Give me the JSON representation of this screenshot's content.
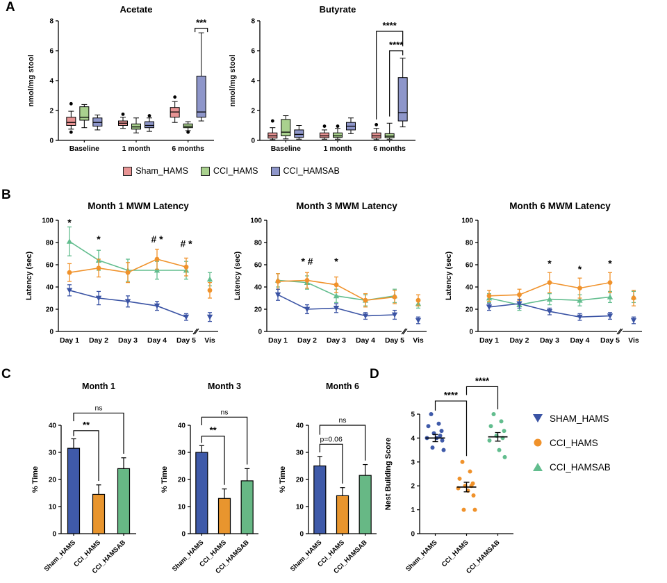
{
  "panel_labels": {
    "a": "A",
    "b": "B",
    "c": "C",
    "d": "D"
  },
  "legend_a": {
    "items": [
      {
        "label": "Sham_HAMS",
        "color": "#e89494"
      },
      {
        "label": "CCI_HAMS",
        "color": "#a9d18e"
      },
      {
        "label": "CCI_HAMSAB",
        "color": "#8e96ca"
      }
    ]
  },
  "legend_d": {
    "items": [
      {
        "label": "SHAM_HAMS",
        "color": "#3a53a4",
        "marker": "triangle-down"
      },
      {
        "label": "CCI_HAMS",
        "color": "#f0922b",
        "marker": "circle"
      },
      {
        "label": "CCI_HAMSAB",
        "color": "#62bd8e",
        "marker": "triangle-up"
      }
    ]
  },
  "chart_data": [
    {
      "id": "acetate",
      "type": "box",
      "title": "Acetate",
      "ylabel": "nmol/mg stool",
      "ylim": [
        0,
        8
      ],
      "yticks": [
        0,
        2,
        4,
        6,
        8
      ],
      "categories": [
        "Baseline",
        "1 month",
        "6 months"
      ],
      "groups": [
        "Sham_HAMS",
        "CCI_HAMS",
        "CCI_HAMSAB"
      ],
      "colors": [
        "#e89494",
        "#a9d18e",
        "#8e96ca"
      ],
      "boxes": [
        [
          {
            "lo": 0.75,
            "q1": 1.0,
            "med": 1.2,
            "q3": 1.55,
            "hi": 1.95,
            "out": [
              0.55,
              2.45
            ]
          },
          {
            "lo": 0.85,
            "q1": 1.35,
            "med": 1.55,
            "q3": 2.25,
            "hi": 2.4,
            "out": []
          },
          {
            "lo": 0.7,
            "q1": 0.95,
            "med": 1.2,
            "q3": 1.5,
            "hi": 1.7,
            "out": []
          }
        ],
        [
          {
            "lo": 0.8,
            "q1": 1.0,
            "med": 1.15,
            "q3": 1.3,
            "hi": 1.55,
            "out": [
              1.75
            ]
          },
          {
            "lo": 0.5,
            "q1": 0.75,
            "med": 0.9,
            "q3": 1.1,
            "hi": 1.5,
            "out": []
          },
          {
            "lo": 0.6,
            "q1": 0.85,
            "med": 1.0,
            "q3": 1.25,
            "hi": 1.5,
            "out": [
              1.65
            ]
          }
        ],
        [
          {
            "lo": 1.2,
            "q1": 1.55,
            "med": 1.9,
            "q3": 2.2,
            "hi": 2.6,
            "out": [
              2.9
            ]
          },
          {
            "lo": 0.65,
            "q1": 0.85,
            "med": 0.95,
            "q3": 1.1,
            "hi": 1.25,
            "out": [
              0.55
            ]
          },
          {
            "lo": 1.3,
            "q1": 1.55,
            "med": 1.9,
            "q3": 4.3,
            "hi": 7.2,
            "out": []
          }
        ]
      ],
      "brackets": [
        {
          "cat": 2,
          "g1": 2,
          "g2": 2,
          "y": 7.5,
          "d1": 7.25,
          "d2": 7.25,
          "label": "***"
        }
      ]
    },
    {
      "id": "butyrate",
      "type": "box",
      "title": "Butyrate",
      "ylabel": "nmol/mg stool",
      "ylim": [
        0,
        8
      ],
      "yticks": [
        0,
        2,
        4,
        6,
        8
      ],
      "categories": [
        "Baseline",
        "1 month",
        "6 months"
      ],
      "groups": [
        "Sham_HAMS",
        "CCI_HAMS",
        "CCI_HAMSAB"
      ],
      "colors": [
        "#e89494",
        "#a9d18e",
        "#8e96ca"
      ],
      "boxes": [
        [
          {
            "lo": 0.05,
            "q1": 0.15,
            "med": 0.3,
            "q3": 0.5,
            "hi": 0.85,
            "out": [
              1.3
            ]
          },
          {
            "lo": 0.1,
            "q1": 0.3,
            "med": 0.55,
            "q3": 1.4,
            "hi": 1.65,
            "out": []
          },
          {
            "lo": 0.08,
            "q1": 0.2,
            "med": 0.4,
            "q3": 0.7,
            "hi": 1.0,
            "out": []
          }
        ],
        [
          {
            "lo": 0.08,
            "q1": 0.18,
            "med": 0.3,
            "q3": 0.5,
            "hi": 0.7,
            "out": [
              0.95
            ]
          },
          {
            "lo": 0.08,
            "q1": 0.2,
            "med": 0.3,
            "q3": 0.5,
            "hi": 0.8,
            "out": [
              0.95
            ]
          },
          {
            "lo": 0.45,
            "q1": 0.7,
            "med": 0.95,
            "q3": 1.2,
            "hi": 1.5,
            "out": []
          }
        ],
        [
          {
            "lo": 0.05,
            "q1": 0.15,
            "med": 0.3,
            "q3": 0.5,
            "hi": 0.8,
            "out": [
              1.05
            ]
          },
          {
            "lo": 0.08,
            "q1": 0.18,
            "med": 0.28,
            "q3": 0.45,
            "hi": 1.15,
            "out": []
          },
          {
            "lo": 0.9,
            "q1": 1.3,
            "med": 1.85,
            "q3": 4.2,
            "hi": 5.5,
            "out": []
          }
        ]
      ],
      "brackets": [
        {
          "cat": 2,
          "g1": 0,
          "g2": 2,
          "y": 7.3,
          "d1": 1.4,
          "d2": 6.3,
          "label": "****"
        },
        {
          "cat": 2,
          "g1": 1,
          "g2": 2,
          "y": 6.0,
          "d1": 1.6,
          "d2": 5.7,
          "label": "****"
        }
      ]
    },
    {
      "id": "mwm1",
      "type": "line",
      "title": "Month 1 MWM Latency",
      "ylabel": "Latency (sec)",
      "ylim": [
        0,
        100
      ],
      "yticks": [
        0,
        20,
        40,
        60,
        80,
        100
      ],
      "x": [
        "Day 1",
        "Day 2",
        "Day 3",
        "Day 4",
        "Day 5"
      ],
      "x_extra": "Vis",
      "series": [
        {
          "name": "CCI_HAMSAB",
          "color": "#62bd8e",
          "marker": "triangle-up",
          "values": [
            81,
            64,
            55,
            55,
            55
          ],
          "err": [
            13,
            9,
            10,
            8,
            8
          ],
          "vis": 47,
          "vis_err": 6
        },
        {
          "name": "CCI_HAMS",
          "color": "#f0922b",
          "marker": "circle",
          "values": [
            53,
            57,
            53,
            65,
            58
          ],
          "err": [
            8,
            8,
            9,
            9,
            8
          ],
          "vis": 37,
          "vis_err": 7
        },
        {
          "name": "SHAM_HAMS",
          "color": "#3a53a4",
          "marker": "triangle-down",
          "values": [
            37,
            30,
            27,
            23,
            13
          ],
          "err": [
            5,
            6,
            5,
            4,
            3
          ],
          "vis": 13,
          "vis_err": 4
        }
      ],
      "sig": [
        {
          "x": 0,
          "y": 95,
          "t": "*"
        },
        {
          "x": 1,
          "y": 80,
          "t": "*"
        },
        {
          "x": 3,
          "y": 80,
          "t": "# *"
        },
        {
          "x": 4,
          "y": 76,
          "t": "# *"
        }
      ]
    },
    {
      "id": "mwm3",
      "type": "line",
      "title": "Month 3 MWM Latency",
      "ylabel": "Latency (sec)",
      "ylim": [
        0,
        100
      ],
      "yticks": [
        0,
        20,
        40,
        60,
        80,
        100
      ],
      "x": [
        "Day 1",
        "Day 2",
        "Day 3",
        "Day 4",
        "Day 5"
      ],
      "x_extra": "Vis",
      "series": [
        {
          "name": "CCI_HAMSAB",
          "color": "#62bd8e",
          "marker": "triangle-up",
          "values": [
            46,
            44,
            32,
            28,
            32
          ],
          "err": [
            6,
            6,
            6,
            5,
            6
          ],
          "vis": 25,
          "vis_err": 4
        },
        {
          "name": "CCI_HAMS",
          "color": "#f0922b",
          "marker": "circle",
          "values": [
            45,
            46,
            42,
            28,
            31
          ],
          "err": [
            7,
            7,
            7,
            6,
            6
          ],
          "vis": 28,
          "vis_err": 5
        },
        {
          "name": "SHAM_HAMS",
          "color": "#3a53a4",
          "marker": "triangle-down",
          "values": [
            33,
            20,
            21,
            14,
            15
          ],
          "err": [
            5,
            4,
            4,
            3,
            4
          ],
          "vis": 10,
          "vis_err": 3
        }
      ],
      "sig": [
        {
          "x": 1,
          "y": 60,
          "t": "* #"
        },
        {
          "x": 2,
          "y": 60,
          "t": "*"
        }
      ]
    },
    {
      "id": "mwm6",
      "type": "line",
      "title": "Month 6 MWM Latency",
      "ylabel": "Latency (sec)",
      "ylim": [
        0,
        100
      ],
      "yticks": [
        0,
        20,
        40,
        60,
        80,
        100
      ],
      "x": [
        "Day 1",
        "Day 2",
        "Day 3",
        "Day 4",
        "Day 5"
      ],
      "x_extra": "Vis",
      "series": [
        {
          "name": "CCI_HAMSAB",
          "color": "#62bd8e",
          "marker": "triangle-up",
          "values": [
            30,
            24,
            29,
            28,
            31
          ],
          "err": [
            4,
            5,
            5,
            5,
            5
          ],
          "vis": 31,
          "vis_err": 5
        },
        {
          "name": "CCI_HAMS",
          "color": "#f0922b",
          "marker": "circle",
          "values": [
            32,
            33,
            44,
            39,
            44
          ],
          "err": [
            5,
            5,
            9,
            9,
            9
          ],
          "vis": 30,
          "vis_err": 7
        },
        {
          "name": "SHAM_HAMS",
          "color": "#3a53a4",
          "marker": "triangle-down",
          "values": [
            22,
            25,
            18,
            13,
            14
          ],
          "err": [
            3,
            4,
            3,
            3,
            3
          ],
          "vis": 10,
          "vis_err": 3
        }
      ],
      "sig": [
        {
          "x": 2,
          "y": 58,
          "t": "*"
        },
        {
          "x": 3,
          "y": 53,
          "t": "*"
        },
        {
          "x": 4,
          "y": 58,
          "t": "*"
        }
      ]
    },
    {
      "id": "pct1",
      "type": "bar",
      "title": "Month 1",
      "ylabel": "% Time",
      "ylim": [
        0,
        40
      ],
      "yticks": [
        0,
        10,
        20,
        30,
        40
      ],
      "categories": [
        "Sham_HAMS",
        "CCI_HAMS",
        "CCI_HAMSAB"
      ],
      "colors": [
        "#3f5aa9",
        "#e8952e",
        "#67b885"
      ],
      "values": [
        31.5,
        14.5,
        24
      ],
      "err": [
        3.5,
        3.5,
        4
      ],
      "brackets": [
        {
          "i1": 0,
          "i2": 1,
          "y": 38,
          "d1": 36,
          "d2": 19.5,
          "label": "**"
        },
        {
          "i1": 0,
          "i2": 2,
          "y": 44.5,
          "d1": 41.5,
          "d2": 29.5,
          "label": "ns"
        }
      ]
    },
    {
      "id": "pct3",
      "type": "bar",
      "title": "Month 3",
      "ylabel": "% Time",
      "ylim": [
        0,
        40
      ],
      "yticks": [
        0,
        10,
        20,
        30,
        40
      ],
      "categories": [
        "Sham_HAMS",
        "CCI_HAMS",
        "CCI_HAMSAB"
      ],
      "colors": [
        "#3f5aa9",
        "#e8952e",
        "#67b885"
      ],
      "values": [
        30,
        13,
        19.5
      ],
      "err": [
        2.5,
        3.5,
        4.5
      ],
      "brackets": [
        {
          "i1": 0,
          "i2": 1,
          "y": 36,
          "d1": 33.5,
          "d2": 18,
          "label": "**"
        },
        {
          "i1": 0,
          "i2": 2,
          "y": 43,
          "d1": 40,
          "d2": 25.5,
          "label": "ns"
        }
      ]
    },
    {
      "id": "pct6",
      "type": "bar",
      "title": "Month 6",
      "ylabel": "% Time",
      "ylim": [
        0,
        40
      ],
      "yticks": [
        0,
        10,
        20,
        30,
        40
      ],
      "categories": [
        "Sham_HAMS",
        "CCI_HAMS",
        "CCI_HAMSAB"
      ],
      "colors": [
        "#3f5aa9",
        "#e8952e",
        "#67b885"
      ],
      "values": [
        25,
        14,
        21.5
      ],
      "err": [
        3.5,
        3,
        4
      ],
      "brackets": [
        {
          "i1": 0,
          "i2": 1,
          "y": 33,
          "d1": 30,
          "d2": 18.5,
          "label": "p=0.06"
        },
        {
          "i1": 0,
          "i2": 2,
          "y": 40,
          "d1": 36.5,
          "d2": 27,
          "label": "ns"
        }
      ]
    },
    {
      "id": "nest",
      "type": "scatter",
      "title": "",
      "ylabel": "Nest Building Score",
      "ylim": [
        0,
        5
      ],
      "yticks": [
        0,
        1,
        2,
        3,
        4,
        5
      ],
      "categories": [
        "Sham_HAMS",
        "CCI_HAMS",
        "CCI_HAMSAB"
      ],
      "colors": [
        "#3f5aa9",
        "#f0922b",
        "#62bd8e"
      ],
      "groups": [
        {
          "label": "Sham_HAMS",
          "points": [
            5,
            4.6,
            4.5,
            4.3,
            4.2,
            4.1,
            4,
            4,
            3.9,
            3.6,
            3.5
          ],
          "mean": 4.0,
          "sem": 0.15
        },
        {
          "label": "CCI_HAMS",
          "points": [
            3,
            2.6,
            2.3,
            2.1,
            2,
            2,
            1.9,
            1.8,
            1.6,
            1,
            1
          ],
          "mean": 1.95,
          "sem": 0.2
        },
        {
          "label": "CCI_HAMSAB",
          "points": [
            5,
            4.7,
            4.5,
            4.3,
            4.1,
            4,
            3.9,
            3.5,
            3.2
          ],
          "mean": 4.05,
          "sem": 0.18
        }
      ],
      "brackets": [
        {
          "i1": 0,
          "i2": 1,
          "y": 5.55,
          "d1": 5.15,
          "d2": 3.25,
          "label": "****"
        },
        {
          "i1": 1,
          "i2": 2,
          "y": 6.15,
          "d1": 5.8,
          "d2": 5.2,
          "label": "****"
        }
      ]
    }
  ]
}
